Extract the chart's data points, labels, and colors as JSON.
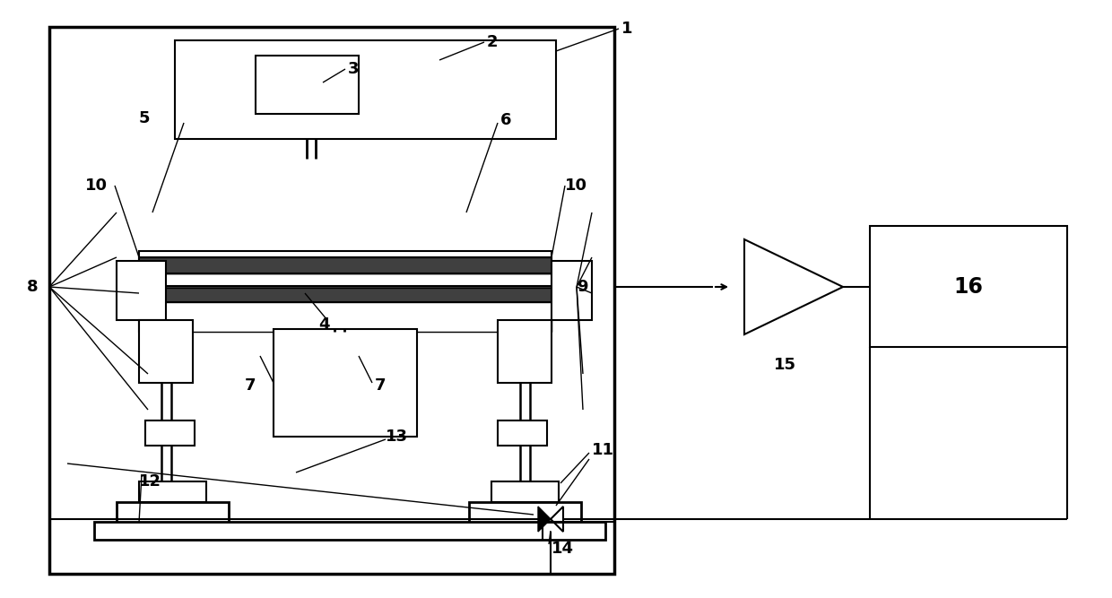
{
  "bg_color": "#ffffff",
  "lc": "#000000",
  "fig_w": 12.4,
  "fig_h": 6.67,
  "dpi": 100,
  "lw_outer": 2.0,
  "lw_main": 1.5,
  "lw_thin": 1.0,
  "fs_label": 13
}
